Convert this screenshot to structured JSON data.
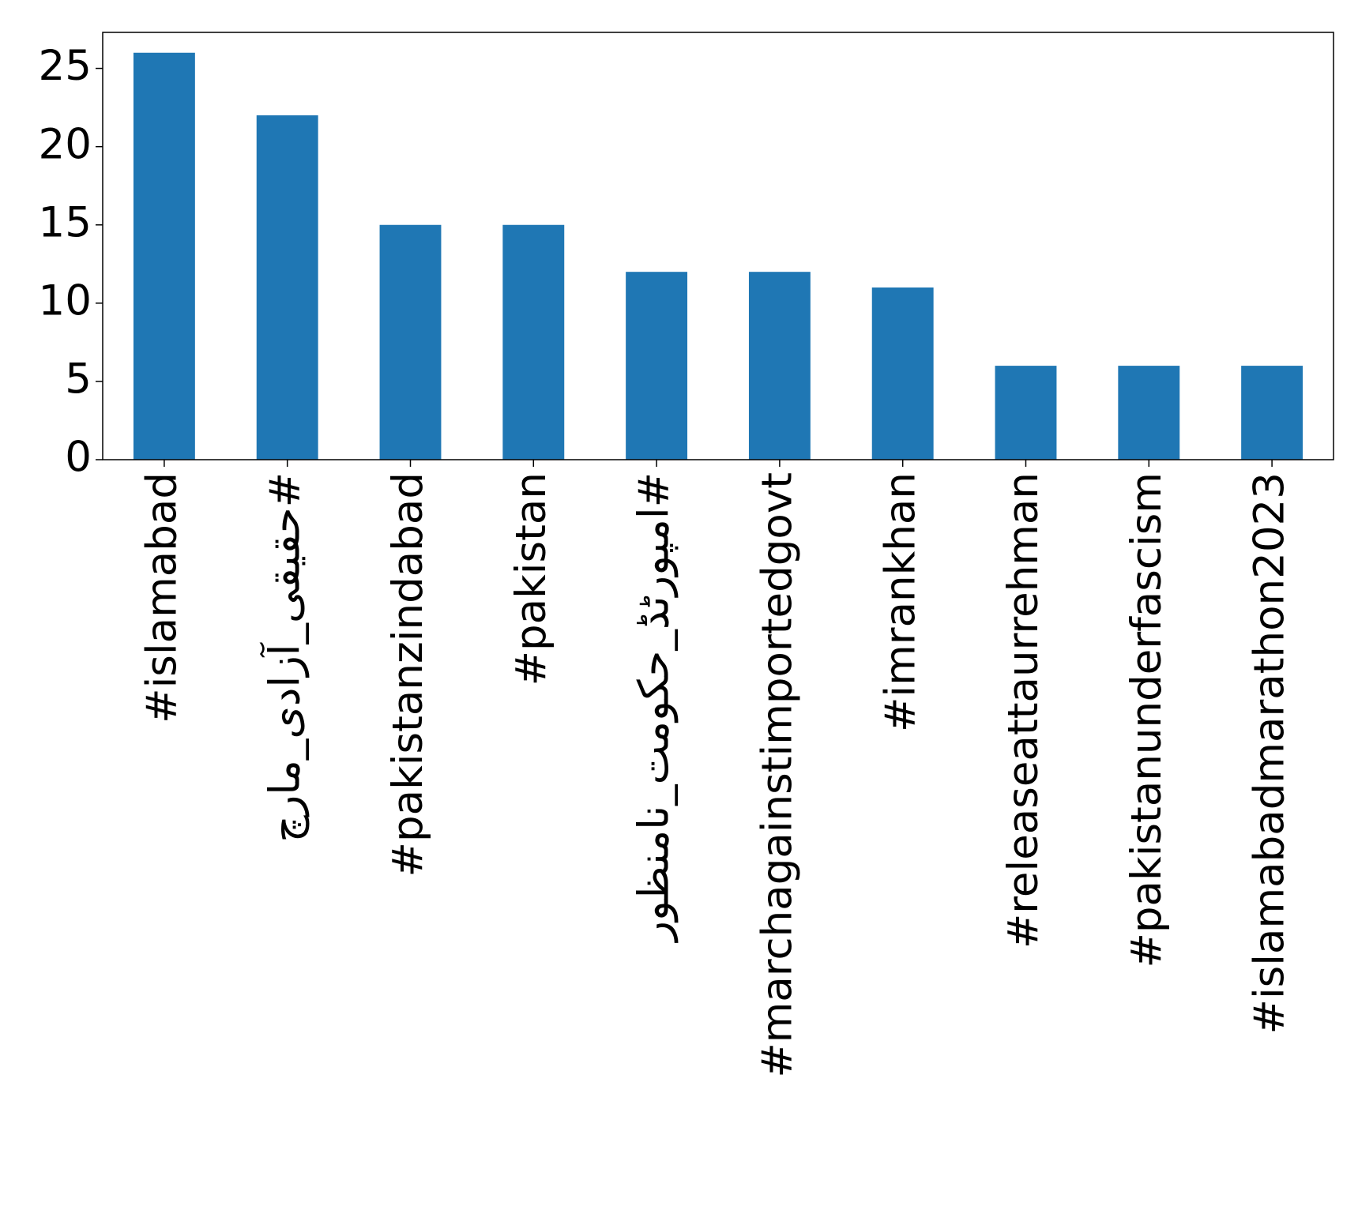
{
  "chart_data": {
    "type": "bar",
    "categories": [
      "#islamabad",
      "#حقیقی_آزادی_مارچ",
      "#pakistanzindabad",
      "#pakistan",
      "#امپورٹڈ_حکومت_نامنظور",
      "#marchagainstimportedgovt",
      "#imrankhan",
      "#releaseattaurrehman",
      "#pakistanunderfascism",
      "#islamabadmarathon2023"
    ],
    "values": [
      26,
      22,
      15,
      15,
      12,
      12,
      11,
      6,
      6,
      6
    ],
    "color": "#1f77b4",
    "ylim": [
      0,
      27.3
    ],
    "yticks": [
      0,
      5,
      10,
      15,
      20,
      25
    ],
    "grid": false
  }
}
